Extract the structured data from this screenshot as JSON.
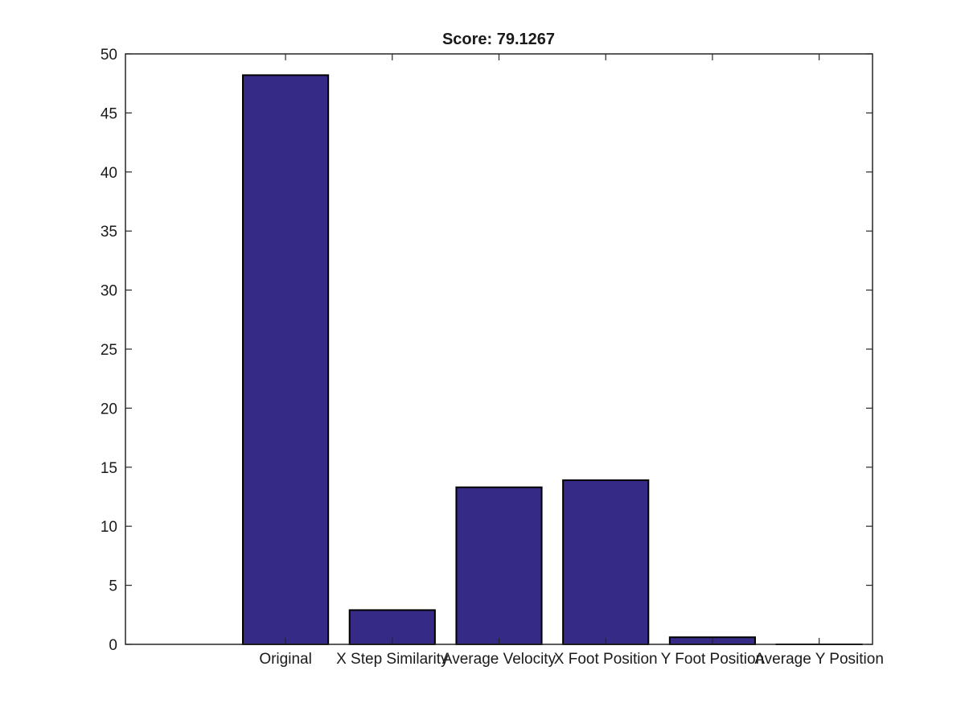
{
  "chart_data": {
    "type": "bar",
    "title": "Score: 79.1267",
    "xlabel": "",
    "ylabel": "",
    "categories": [
      "Original",
      "X Step Similarity",
      "Average Velocity",
      "X Foot Position",
      "Y Foot Position",
      "Average Y Position"
    ],
    "values": [
      48.2,
      2.9,
      13.3,
      13.9,
      0.6,
      0.0
    ],
    "ylim": [
      0,
      50
    ],
    "xlim": [
      -0.5,
      6.5
    ],
    "yticks": [
      0,
      5,
      10,
      15,
      20,
      25,
      30,
      35,
      40,
      45,
      50
    ],
    "yticklabels": [
      "0",
      "5",
      "10",
      "15",
      "20",
      "25",
      "30",
      "35",
      "40",
      "45",
      "50"
    ],
    "grid": false,
    "legend": "none",
    "colors": {
      "bar_fill": "#352a86",
      "bar_edge": "#000000",
      "axes": "#262626"
    }
  }
}
